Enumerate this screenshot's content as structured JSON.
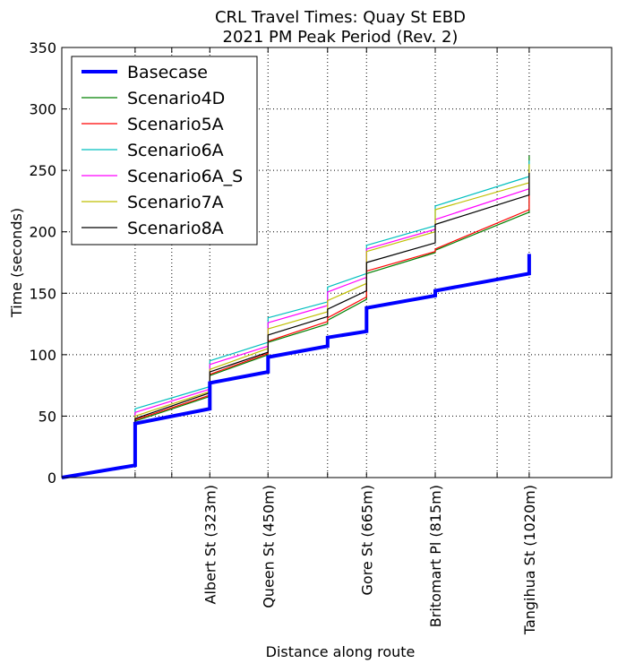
{
  "chart_data": {
    "type": "line",
    "title": "CRL Travel Times: Quay St EBD",
    "subtitle": "2021 PM Peak Period (Rev. 2)",
    "xlabel": "Distance along route",
    "ylabel": "Time (seconds)",
    "xlim": [
      0,
      1200
    ],
    "ylim": [
      0,
      350
    ],
    "yticks": [
      0,
      50,
      100,
      150,
      200,
      250,
      300,
      350
    ],
    "grid": true,
    "legend_position": "top-left",
    "xticks": [
      {
        "x": 160,
        "label": ""
      },
      {
        "x": 240,
        "label": ""
      },
      {
        "x": 323,
        "label": "Albert St (323m)"
      },
      {
        "x": 450,
        "label": "Queen St (450m)"
      },
      {
        "x": 580,
        "label": ""
      },
      {
        "x": 665,
        "label": "Gore St (665m)"
      },
      {
        "x": 815,
        "label": "Britomart Pl (815m)"
      },
      {
        "x": 950,
        "label": ""
      },
      {
        "x": 1020,
        "label": "Tangihua St (1020m)"
      }
    ],
    "series": [
      {
        "name": "Basecase",
        "color": "#0000ff",
        "width": 4,
        "x": [
          0,
          160,
          160,
          323,
          323,
          450,
          450,
          580,
          580,
          665,
          665,
          815,
          815,
          1020,
          1020
        ],
        "y": [
          0,
          10,
          44,
          56,
          77,
          86,
          98,
          107,
          114,
          119,
          138,
          148,
          152,
          166,
          182
        ]
      },
      {
        "name": "Scenario4D",
        "color": "#008000",
        "width": 1.2,
        "x": [
          0,
          160,
          160,
          323,
          323,
          450,
          450,
          580,
          580,
          665,
          665,
          815,
          815,
          1020,
          1020
        ],
        "y": [
          0,
          10,
          46,
          66,
          83,
          100,
          110,
          125,
          128,
          145,
          166,
          183,
          185,
          216,
          262
        ]
      },
      {
        "name": "Scenario5A",
        "color": "#ff0000",
        "width": 1.2,
        "x": [
          0,
          160,
          160,
          323,
          323,
          450,
          450,
          580,
          580,
          665,
          665,
          815,
          815,
          1020,
          1020
        ],
        "y": [
          0,
          10,
          47,
          67,
          84,
          101,
          111,
          127,
          130,
          147,
          168,
          184,
          186,
          218,
          240
        ]
      },
      {
        "name": "Scenario6A",
        "color": "#00bfbf",
        "width": 1.2,
        "x": [
          0,
          160,
          160,
          323,
          323,
          450,
          450,
          580,
          580,
          665,
          665,
          815,
          815,
          1020,
          1020
        ],
        "y": [
          0,
          10,
          56,
          74,
          95,
          110,
          130,
          143,
          155,
          166,
          189,
          205,
          221,
          245,
          258
        ]
      },
      {
        "name": "Scenario6A_S",
        "color": "#ff00ff",
        "width": 1.2,
        "x": [
          0,
          160,
          160,
          323,
          323,
          450,
          450,
          580,
          580,
          665,
          665,
          815,
          815,
          1020,
          1020
        ],
        "y": [
          0,
          10,
          53,
          72,
          92,
          107,
          126,
          140,
          151,
          163,
          186,
          202,
          210,
          235,
          250
        ]
      },
      {
        "name": "Scenario7A",
        "color": "#bfbf00",
        "width": 1.2,
        "x": [
          0,
          160,
          160,
          323,
          323,
          450,
          450,
          580,
          580,
          665,
          665,
          815,
          815,
          1020,
          1020
        ],
        "y": [
          0,
          10,
          50,
          70,
          88,
          105,
          121,
          135,
          144,
          158,
          184,
          200,
          218,
          240,
          255
        ]
      },
      {
        "name": "Scenario8A",
        "color": "#000000",
        "width": 1.2,
        "x": [
          0,
          160,
          160,
          323,
          323,
          450,
          450,
          580,
          580,
          665,
          665,
          815,
          815,
          1020,
          1020
        ],
        "y": [
          0,
          10,
          48,
          69,
          86,
          102,
          116,
          131,
          137,
          152,
          175,
          191,
          206,
          230,
          248
        ]
      }
    ]
  }
}
